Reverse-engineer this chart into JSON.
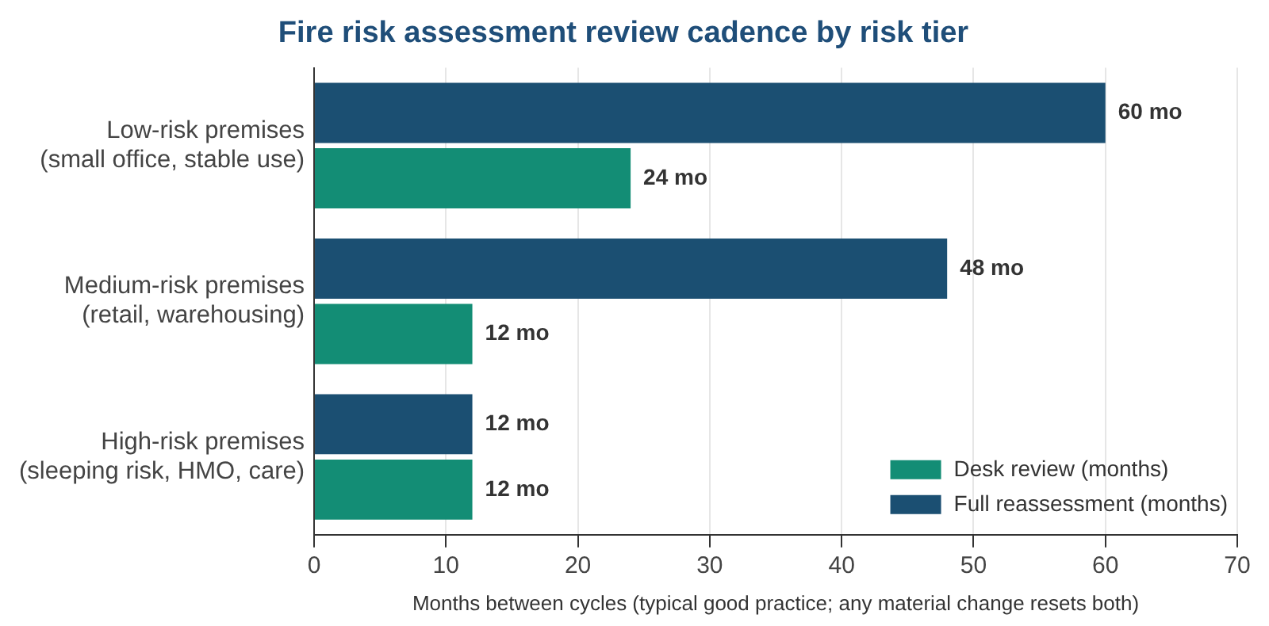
{
  "chart_data": {
    "type": "bar",
    "orientation": "horizontal",
    "title": "Fire risk assessment review cadence by risk tier",
    "xlabel": "Months between cycles (typical good practice; any material change resets both)",
    "categories": [
      "Low-risk premises\n(small office, stable use)",
      "Medium-risk premises\n(retail, warehousing)",
      "High-risk premises\n(sleeping risk, HMO, care)"
    ],
    "series": [
      {
        "name": "Full reassessment (months)",
        "color": "#1b4f72",
        "values": [
          60,
          48,
          12
        ],
        "value_labels": [
          "60 mo",
          "48 mo",
          "12 mo"
        ]
      },
      {
        "name": "Desk review (months)",
        "color": "#138d75",
        "values": [
          24,
          12,
          12
        ],
        "value_labels": [
          "24 mo",
          "12 mo",
          "12 mo"
        ]
      }
    ],
    "xlim": [
      0,
      70
    ],
    "xticks": [
      0,
      10,
      20,
      30,
      40,
      50,
      60,
      70
    ],
    "grid": "x",
    "legend": "bottom right"
  }
}
